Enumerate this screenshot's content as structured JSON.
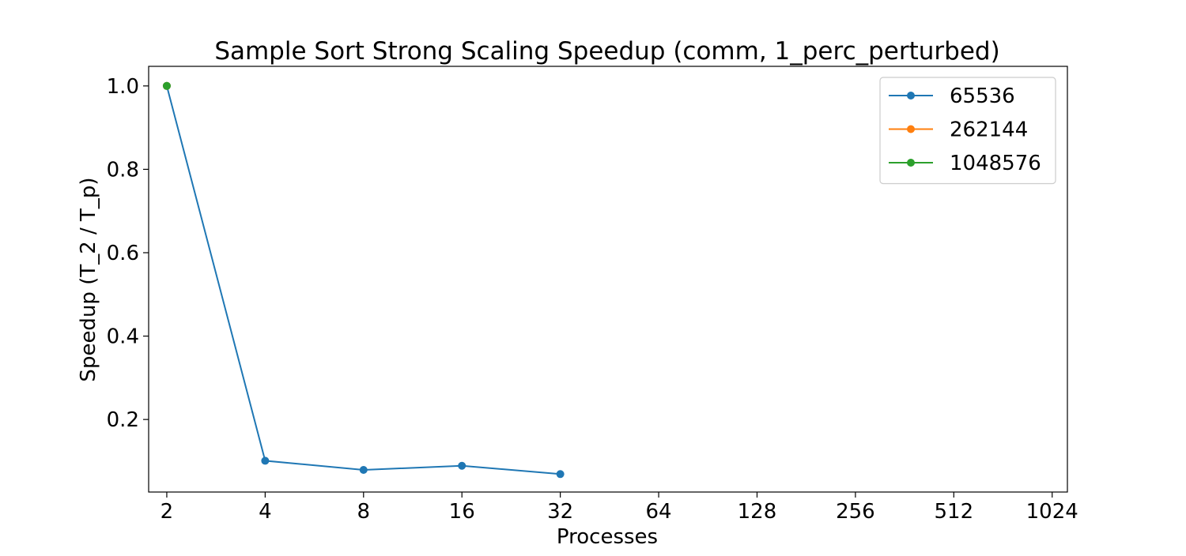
{
  "chart_data": {
    "type": "line",
    "title": "Sample Sort Strong Scaling Speedup (comm, 1_perc_perturbed)",
    "xlabel": "Processes",
    "ylabel": "Speedup (T_2 / T_p)",
    "x_scale": "log2",
    "x_ticks": [
      2,
      4,
      8,
      16,
      32,
      64,
      128,
      256,
      512,
      1024
    ],
    "x_tick_labels": [
      "2",
      "4",
      "8",
      "16",
      "32",
      "64",
      "128",
      "256",
      "512",
      "1024"
    ],
    "y_ticks": [
      0.2,
      0.4,
      0.6,
      0.8,
      1.0
    ],
    "y_tick_labels": [
      "0.2",
      "0.4",
      "0.6",
      "0.8",
      "1.0"
    ],
    "xlim": [
      1.76,
      1140
    ],
    "ylim": [
      0.026,
      1.047
    ],
    "grid": false,
    "legend_position": "top-right",
    "series": [
      {
        "name": "65536",
        "color": "#1f77b4",
        "x": [
          2,
          4,
          8,
          16,
          32
        ],
        "y": [
          1.0,
          0.101,
          0.079,
          0.089,
          0.069
        ]
      },
      {
        "name": "262144",
        "color": "#ff7f0e",
        "x": [
          2
        ],
        "y": [
          1.0
        ]
      },
      {
        "name": "1048576",
        "color": "#2ca02c",
        "x": [
          2
        ],
        "y": [
          1.0
        ]
      }
    ]
  }
}
